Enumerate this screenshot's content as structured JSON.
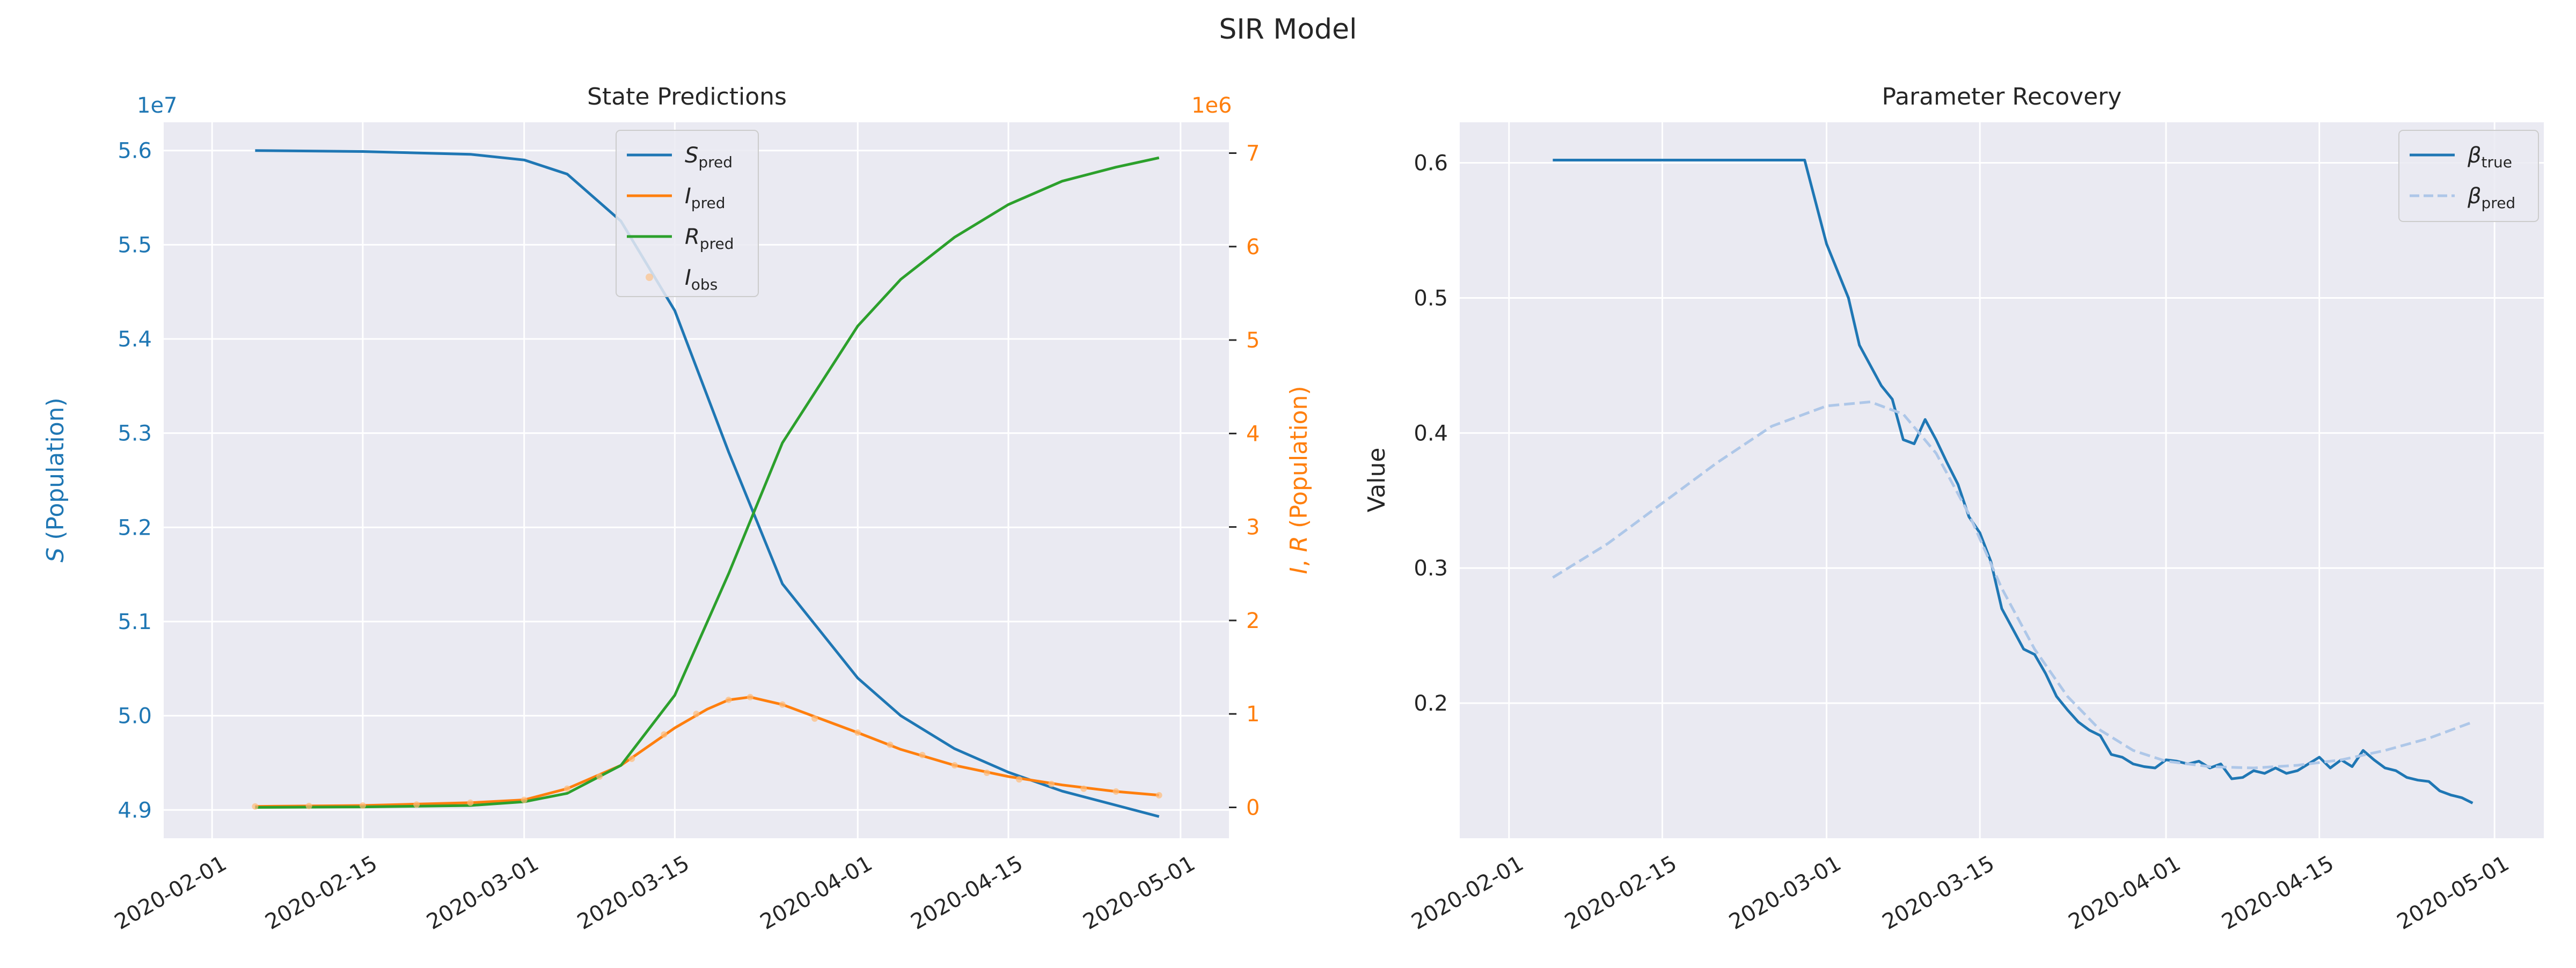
{
  "figure": {
    "title": "SIR Model"
  },
  "chart_data": [
    {
      "type": "line",
      "title": "State Predictions",
      "x_ticks": [
        "2020-02-01",
        "2020-02-15",
        "2020-03-01",
        "2020-03-15",
        "2020-04-01",
        "2020-04-15",
        "2020-05-01"
      ],
      "y_left": {
        "label": "S (Population)",
        "label_italic": "S",
        "label_rest": " (Population)",
        "offset_text": "1e7",
        "ticks": [
          4.9,
          5.0,
          5.1,
          5.2,
          5.3,
          5.4,
          5.5,
          5.6
        ],
        "tick_labels": [
          "4.9",
          "5.0",
          "5.1",
          "5.2",
          "5.3",
          "5.4",
          "5.5",
          "5.6"
        ],
        "range": [
          4.87,
          5.63
        ],
        "unit_scale": 10000000,
        "color": "#1f77b4"
      },
      "y_right": {
        "label": "I, R (Population)",
        "label_italic_1": "I",
        "label_mid": ", ",
        "label_italic_2": "R",
        "label_rest": " (Population)",
        "offset_text": "1e6",
        "ticks": [
          0,
          1,
          2,
          3,
          4,
          5,
          6,
          7
        ],
        "tick_labels": [
          "0",
          "1",
          "2",
          "3",
          "4",
          "5",
          "6",
          "7"
        ],
        "range": [
          -0.33,
          7.33
        ],
        "unit_scale": 1000000,
        "color": "#ff7f0e"
      },
      "legend": {
        "placement": "upper-center",
        "entries": [
          {
            "main": "S",
            "sub": "pred",
            "color": "#1f77b4",
            "style": "solid"
          },
          {
            "main": "I",
            "sub": "pred",
            "color": "#ff7f0e",
            "style": "solid"
          },
          {
            "main": "R",
            "sub": "pred",
            "color": "#2ca02c",
            "style": "solid"
          },
          {
            "main": "I",
            "sub": "obs",
            "color": "#ffbb78",
            "style": "dot"
          }
        ]
      },
      "series": [
        {
          "name": "S_pred",
          "axis": "left",
          "color": "#1f77b4",
          "dates": [
            "2020-02-05",
            "2020-02-15",
            "2020-02-25",
            "2020-03-01",
            "2020-03-05",
            "2020-03-10",
            "2020-03-15",
            "2020-03-20",
            "2020-03-25",
            "2020-04-01",
            "2020-04-05",
            "2020-04-10",
            "2020-04-15",
            "2020-04-20",
            "2020-04-25",
            "2020-04-29"
          ],
          "values": [
            5.6,
            5.599,
            5.596,
            5.59,
            5.575,
            5.525,
            5.43,
            5.28,
            5.14,
            5.04,
            5.0,
            4.965,
            4.94,
            4.92,
            4.905,
            4.893
          ]
        },
        {
          "name": "I_pred",
          "axis": "right",
          "color": "#ff7f0e",
          "dates": [
            "2020-02-05",
            "2020-02-15",
            "2020-02-25",
            "2020-03-01",
            "2020-03-05",
            "2020-03-10",
            "2020-03-15",
            "2020-03-18",
            "2020-03-20",
            "2020-03-22",
            "2020-03-25",
            "2020-04-01",
            "2020-04-05",
            "2020-04-10",
            "2020-04-15",
            "2020-04-20",
            "2020-04-25",
            "2020-04-29"
          ],
          "values": [
            0.01,
            0.02,
            0.05,
            0.08,
            0.2,
            0.45,
            0.85,
            1.05,
            1.15,
            1.18,
            1.1,
            0.8,
            0.62,
            0.45,
            0.33,
            0.24,
            0.17,
            0.13
          ]
        },
        {
          "name": "R_pred",
          "axis": "right",
          "color": "#2ca02c",
          "dates": [
            "2020-02-05",
            "2020-02-15",
            "2020-02-25",
            "2020-03-01",
            "2020-03-05",
            "2020-03-10",
            "2020-03-15",
            "2020-03-20",
            "2020-03-25",
            "2020-04-01",
            "2020-04-05",
            "2020-04-10",
            "2020-04-15",
            "2020-04-20",
            "2020-04-25",
            "2020-04-29"
          ],
          "values": [
            0.0,
            0.005,
            0.02,
            0.06,
            0.15,
            0.45,
            1.2,
            2.5,
            3.9,
            5.15,
            5.65,
            6.1,
            6.45,
            6.7,
            6.85,
            6.95
          ]
        },
        {
          "name": "I_obs",
          "axis": "right",
          "color": "#ffbb78",
          "style": "scatter",
          "dates": [
            "2020-02-05",
            "2020-02-10",
            "2020-02-15",
            "2020-02-20",
            "2020-02-25",
            "2020-03-01",
            "2020-03-05",
            "2020-03-08",
            "2020-03-11",
            "2020-03-14",
            "2020-03-17",
            "2020-03-20",
            "2020-03-22",
            "2020-03-25",
            "2020-03-28",
            "2020-04-01",
            "2020-04-04",
            "2020-04-07",
            "2020-04-10",
            "2020-04-13",
            "2020-04-16",
            "2020-04-19",
            "2020-04-22",
            "2020-04-25",
            "2020-04-29"
          ],
          "values": [
            0.01,
            0.015,
            0.02,
            0.03,
            0.05,
            0.08,
            0.2,
            0.33,
            0.52,
            0.78,
            1.0,
            1.15,
            1.18,
            1.1,
            0.95,
            0.8,
            0.67,
            0.56,
            0.45,
            0.37,
            0.3,
            0.25,
            0.2,
            0.17,
            0.13
          ]
        }
      ]
    },
    {
      "type": "line",
      "title": "Parameter Recovery",
      "ylabel": "Value",
      "x_ticks": [
        "2020-02-01",
        "2020-02-15",
        "2020-03-01",
        "2020-03-15",
        "2020-04-01",
        "2020-04-15",
        "2020-05-01"
      ],
      "y_ticks": [
        0.2,
        0.3,
        0.4,
        0.5,
        0.6
      ],
      "y_tick_labels": [
        "0.2",
        "0.3",
        "0.4",
        "0.5",
        "0.6"
      ],
      "ylim": [
        0.1,
        0.63
      ],
      "legend": {
        "placement": "upper-right",
        "entries": [
          {
            "main": "β",
            "sub": "true",
            "color": "#1f77b4",
            "style": "solid"
          },
          {
            "main": "β",
            "sub": "pred",
            "color": "#aec7e8",
            "style": "dashed"
          }
        ]
      },
      "series": [
        {
          "name": "beta_true",
          "color": "#1f77b4",
          "dates": [
            "2020-02-05",
            "2020-02-28",
            "2020-03-01",
            "2020-03-02",
            "2020-03-03",
            "2020-03-04",
            "2020-03-05",
            "2020-03-06",
            "2020-03-07",
            "2020-03-08",
            "2020-03-09",
            "2020-03-10",
            "2020-03-11",
            "2020-03-12",
            "2020-03-13",
            "2020-03-14",
            "2020-03-15",
            "2020-03-16",
            "2020-03-17",
            "2020-03-18",
            "2020-03-19",
            "2020-03-20",
            "2020-03-21",
            "2020-03-22",
            "2020-03-23",
            "2020-03-24",
            "2020-03-25",
            "2020-03-26",
            "2020-03-27",
            "2020-03-28",
            "2020-03-29",
            "2020-03-30",
            "2020-03-31",
            "2020-04-01",
            "2020-04-02",
            "2020-04-03",
            "2020-04-04",
            "2020-04-05",
            "2020-04-06",
            "2020-04-07",
            "2020-04-08",
            "2020-04-09",
            "2020-04-10",
            "2020-04-11",
            "2020-04-12",
            "2020-04-13",
            "2020-04-14",
            "2020-04-15",
            "2020-04-16",
            "2020-04-17",
            "2020-04-18",
            "2020-04-19",
            "2020-04-20",
            "2020-04-21",
            "2020-04-22",
            "2020-04-23",
            "2020-04-24",
            "2020-04-25",
            "2020-04-26",
            "2020-04-27",
            "2020-04-28",
            "2020-04-29"
          ],
          "values": [
            0.602,
            0.602,
            0.54,
            0.52,
            0.5,
            0.465,
            0.45,
            0.435,
            0.425,
            0.395,
            0.392,
            0.41,
            0.395,
            0.378,
            0.362,
            0.338,
            0.326,
            0.305,
            0.27,
            0.255,
            0.24,
            0.236,
            0.222,
            0.205,
            0.195,
            0.186,
            0.18,
            0.176,
            0.162,
            0.16,
            0.155,
            0.153,
            0.152,
            0.158,
            0.157,
            0.155,
            0.157,
            0.152,
            0.155,
            0.144,
            0.145,
            0.15,
            0.148,
            0.152,
            0.148,
            0.15,
            0.155,
            0.16,
            0.152,
            0.158,
            0.153,
            0.165,
            0.158,
            0.152,
            0.15,
            0.145,
            0.143,
            0.142,
            0.135,
            0.132,
            0.13,
            0.126
          ]
        },
        {
          "name": "beta_pred",
          "color": "#aec7e8",
          "style": "dashed",
          "dates": [
            "2020-02-05",
            "2020-02-10",
            "2020-02-15",
            "2020-02-20",
            "2020-02-25",
            "2020-03-01",
            "2020-03-05",
            "2020-03-08",
            "2020-03-11",
            "2020-03-14",
            "2020-03-17",
            "2020-03-20",
            "2020-03-23",
            "2020-03-26",
            "2020-03-29",
            "2020-04-01",
            "2020-04-05",
            "2020-04-09",
            "2020-04-13",
            "2020-04-17",
            "2020-04-21",
            "2020-04-25",
            "2020-04-29"
          ],
          "values": [
            0.293,
            0.318,
            0.348,
            0.378,
            0.405,
            0.42,
            0.423,
            0.414,
            0.385,
            0.34,
            0.285,
            0.24,
            0.205,
            0.18,
            0.165,
            0.157,
            0.153,
            0.152,
            0.154,
            0.158,
            0.165,
            0.174,
            0.186
          ]
        }
      ]
    }
  ]
}
